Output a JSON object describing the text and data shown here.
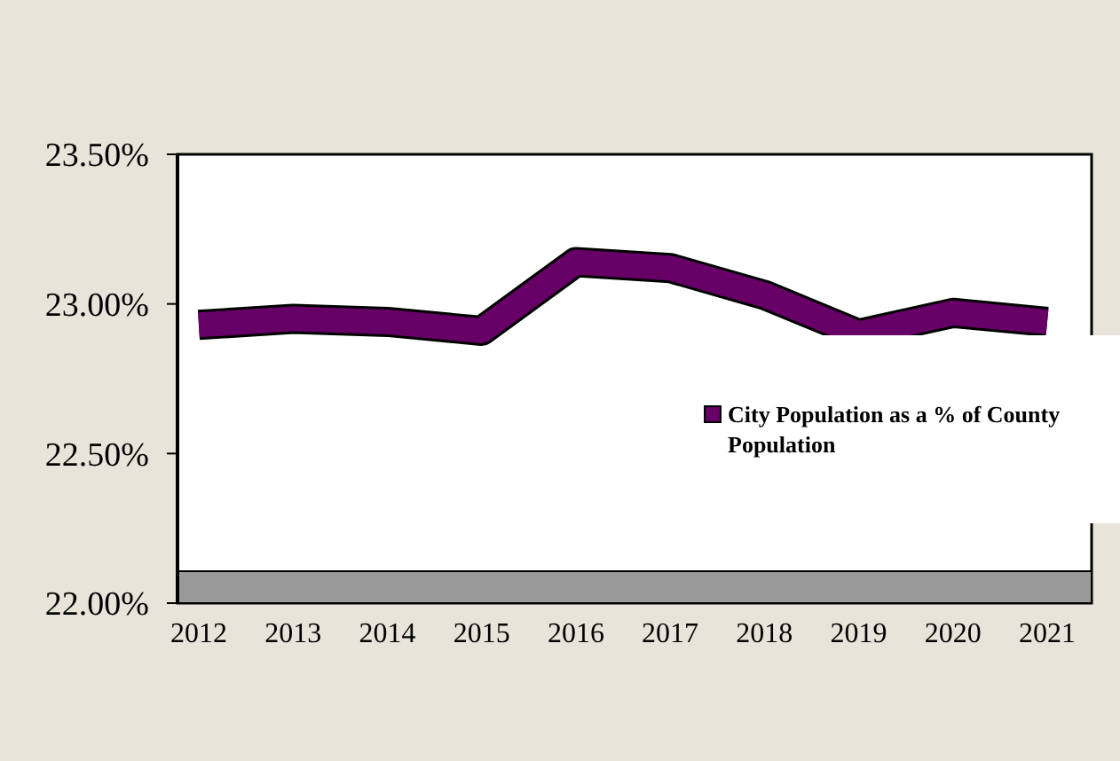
{
  "chart_data": {
    "type": "line",
    "categories": [
      "2012",
      "2013",
      "2014",
      "2015",
      "2016",
      "2017",
      "2018",
      "2019",
      "2020",
      "2021"
    ],
    "series": [
      {
        "name": "City Population as a % of County Population",
        "color": "#660066",
        "values": [
          22.93,
          22.95,
          22.94,
          22.91,
          23.14,
          23.12,
          23.03,
          22.9,
          22.97,
          22.94
        ]
      }
    ],
    "ylim": [
      22,
      23.5
    ],
    "yticks": [
      {
        "value": 22,
        "label": "22.00%"
      },
      {
        "value": 22.5,
        "label": "22.50%"
      },
      {
        "value": 23,
        "label": "23.00%"
      },
      {
        "value": 23.5,
        "label": "23.50%"
      }
    ],
    "legend": "right",
    "grid": false
  }
}
